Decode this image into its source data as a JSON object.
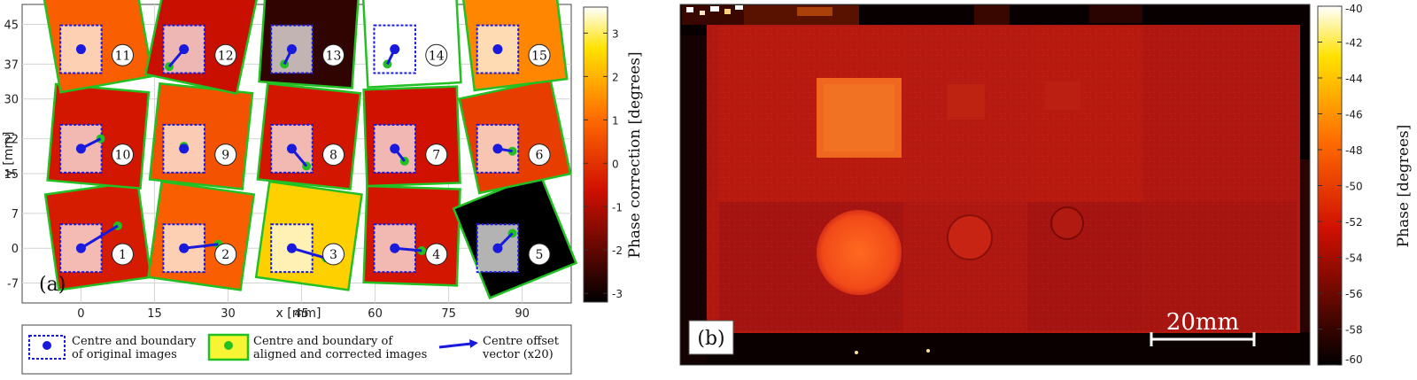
{
  "chart_data": [
    {
      "type": "scatter",
      "panel_label": "(a)",
      "xlabel": "x [mm]",
      "ylabel": "y [mm]",
      "xlim": [
        -12,
        100
      ],
      "ylim": [
        -11,
        49
      ],
      "x_ticks": [
        0,
        15,
        30,
        45,
        60,
        75,
        90
      ],
      "y_ticks": [
        -7,
        0,
        7,
        15,
        22,
        30,
        37,
        45
      ],
      "grid": true,
      "colorbar": {
        "label": "Phase correction [degrees]",
        "range": [
          -3.2,
          3.6
        ],
        "ticks": [
          -3,
          -2,
          -1,
          0,
          1,
          2,
          3
        ],
        "colormap": "hot"
      },
      "tiles": [
        {
          "label": "1",
          "x": 0,
          "y": 0,
          "offset_x": 7.5,
          "offset_y": 4.5,
          "correction": -0.4,
          "angle": 8
        },
        {
          "label": "2",
          "x": 21,
          "y": 0,
          "offset_x": 7,
          "offset_y": 0.8,
          "correction": 0.8,
          "angle": -8
        },
        {
          "label": "3",
          "x": 43,
          "y": 0,
          "offset_x": 7,
          "offset_y": -2,
          "correction": 2.4,
          "angle": -8
        },
        {
          "label": "4",
          "x": 64,
          "y": 0,
          "offset_x": 5.5,
          "offset_y": -0.5,
          "correction": -0.5,
          "angle": -2
        },
        {
          "label": "5",
          "x": 85,
          "y": 0,
          "offset_x": 3,
          "offset_y": 3,
          "correction": -3.2,
          "angle": 22
        },
        {
          "label": "6",
          "x": 85,
          "y": 20,
          "offset_x": 3,
          "offset_y": -0.5,
          "correction": 0.2,
          "angle": 12
        },
        {
          "label": "7",
          "x": 64,
          "y": 20,
          "offset_x": 2,
          "offset_y": -2.5,
          "correction": -0.6,
          "angle": 2
        },
        {
          "label": "8",
          "x": 43,
          "y": 20,
          "offset_x": 3,
          "offset_y": -3.5,
          "correction": -0.5,
          "angle": -6
        },
        {
          "label": "9",
          "x": 21,
          "y": 20,
          "offset_x": 0,
          "offset_y": 0.5,
          "correction": 0.6,
          "angle": -6
        },
        {
          "label": "10",
          "x": 0,
          "y": 20,
          "offset_x": 4,
          "offset_y": 2,
          "correction": -0.5,
          "angle": -5
        },
        {
          "label": "11",
          "x": 0,
          "y": 40,
          "offset_x": 0,
          "offset_y": 0,
          "correction": 0.8,
          "angle": 10
        },
        {
          "label": "12",
          "x": 21,
          "y": 40,
          "offset_x": -3,
          "offset_y": -3.5,
          "correction": -0.7,
          "angle": -12
        },
        {
          "label": "13",
          "x": 43,
          "y": 40,
          "offset_x": -1.5,
          "offset_y": -3,
          "correction": -2.6,
          "angle": -4
        },
        {
          "label": "14",
          "x": 64,
          "y": 40,
          "offset_x": -1.5,
          "offset_y": -3,
          "correction": 3.6,
          "angle": 3
        },
        {
          "label": "15",
          "x": 85,
          "y": 40,
          "offset_x": 0,
          "offset_y": 0,
          "correction": 1.4,
          "angle": 7
        }
      ],
      "legend": [
        {
          "label_line1": "Centre and boundary",
          "label_line2": "of original images"
        },
        {
          "label_line1": "Centre and boundary of",
          "label_line2": "aligned and corrected images"
        },
        {
          "label_line1": "Centre offset",
          "label_line2": "vector (x20)"
        }
      ]
    },
    {
      "type": "heatmap",
      "panel_label": "(b)",
      "scale_bar": "20mm",
      "colorbar": {
        "label": "Phase [degrees]",
        "range": [
          -60,
          -40
        ],
        "ticks": [
          -60,
          -58,
          -56,
          -54,
          -52,
          -50,
          -48,
          -46,
          -44,
          -42,
          -40
        ],
        "colormap": "hot"
      }
    }
  ],
  "colors": {
    "original": "#1a1adc",
    "aligned": "#22c022",
    "grid": "#d4d4d4"
  }
}
